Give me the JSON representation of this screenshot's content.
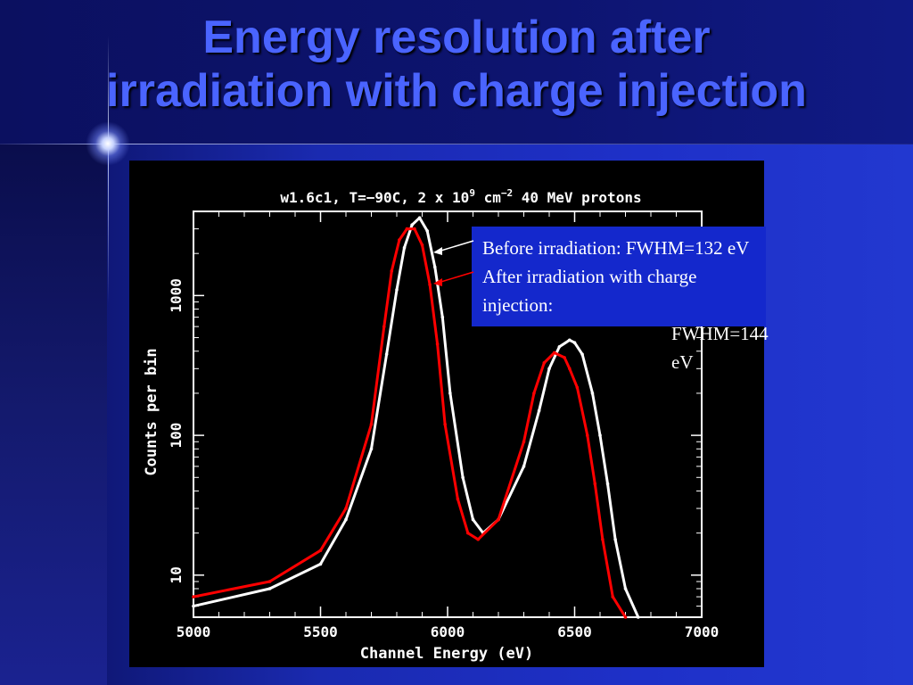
{
  "slide": {
    "title_line1": "Energy resolution after",
    "title_line2": "irradiation with charge injection"
  },
  "legend_box": {
    "line1": "Before irradiation: FWHM=132 eV",
    "line2": "After irradiation with charge injection:",
    "line3": "FWHM=144 eV"
  },
  "colors": {
    "title": "#4a64ff",
    "legend_bg": "#1428cc",
    "before_series": "#ffffff",
    "after_series": "#ff0000"
  },
  "chart_data": {
    "type": "line",
    "title": "w1.6c1, T=−90C, 2 x 10^9 cm^-2 40 MeV protons",
    "title_parts": {
      "a": "w1.6c1, T=−90C, 2 x 10",
      "b": "9",
      "c": " cm",
      "d": "−2",
      "e": " 40 MeV protons"
    },
    "xlabel": "Channel Energy (eV)",
    "ylabel": "Counts per bin",
    "xlim": [
      5000,
      7000
    ],
    "ylim": [
      5,
      4000
    ],
    "yscale": "log",
    "xticks": [
      "5000",
      "5500",
      "6000",
      "6500",
      "7000"
    ],
    "yticks": [
      "10",
      "100",
      "1000"
    ],
    "series": [
      {
        "name": "Before irradiation",
        "color": "#ffffff",
        "x": [
          5000,
          5300,
          5500,
          5600,
          5700,
          5760,
          5800,
          5830,
          5860,
          5890,
          5920,
          5950,
          5980,
          6010,
          6060,
          6100,
          6140,
          6200,
          6300,
          6360,
          6400,
          6440,
          6480,
          6500,
          6530,
          6570,
          6600,
          6630,
          6660,
          6700,
          6750
        ],
        "y": [
          6,
          8,
          12,
          25,
          80,
          380,
          1100,
          2200,
          3200,
          3600,
          2900,
          1600,
          700,
          200,
          50,
          25,
          20,
          25,
          60,
          150,
          300,
          430,
          480,
          460,
          380,
          200,
          100,
          45,
          18,
          8,
          5
        ]
      },
      {
        "name": "After irradiation with charge injection",
        "color": "#ff0000",
        "x": [
          5000,
          5300,
          5500,
          5600,
          5700,
          5750,
          5780,
          5810,
          5840,
          5870,
          5900,
          5930,
          5960,
          5990,
          6040,
          6080,
          6120,
          6200,
          6300,
          6340,
          6380,
          6420,
          6460,
          6480,
          6510,
          6550,
          6580,
          6610,
          6650,
          6700
        ],
        "y": [
          7,
          9,
          15,
          30,
          120,
          600,
          1500,
          2500,
          3000,
          3000,
          2300,
          1200,
          450,
          120,
          35,
          20,
          18,
          25,
          90,
          200,
          330,
          390,
          360,
          300,
          220,
          100,
          45,
          18,
          7,
          5
        ]
      }
    ]
  }
}
